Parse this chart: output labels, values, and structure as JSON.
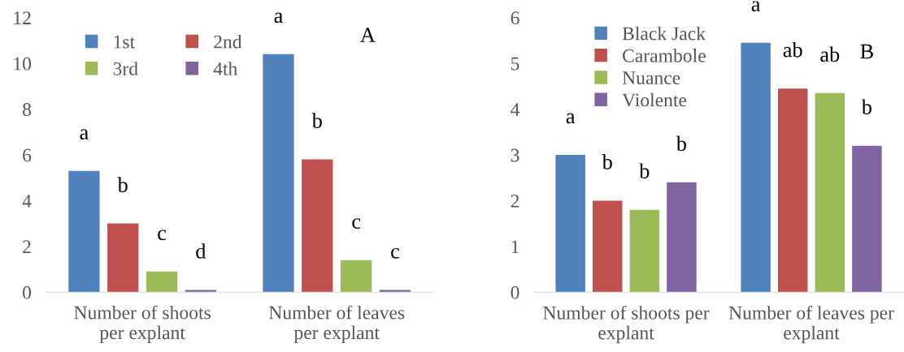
{
  "chart_data": [
    {
      "type": "bar",
      "categories": [
        "Number of shoots\nper explant",
        "Number of leaves\nper explant"
      ],
      "ylim": [
        0,
        12
      ],
      "yticks": [
        0,
        2,
        4,
        6,
        8,
        10,
        12
      ],
      "grid": false,
      "legend": "top left",
      "series": [
        {
          "name": "1st",
          "color": "#4f81bd",
          "values": [
            5.3,
            10.4
          ]
        },
        {
          "name": "2nd",
          "color": "#c0504d",
          "values": [
            3.0,
            5.8
          ]
        },
        {
          "name": "3rd",
          "color": "#9bbb59",
          "values": [
            0.9,
            1.4
          ]
        },
        {
          "name": "4th",
          "color": "#8064a2",
          "values": [
            0.1,
            0.1
          ]
        }
      ],
      "annotations": [
        "A",
        "a",
        "b",
        "c",
        "d",
        "a",
        "b",
        "c",
        "c"
      ]
    },
    {
      "type": "bar",
      "categories": [
        "Number of shoots per\nexplant",
        "Number of leaves per\nexplant"
      ],
      "ylim": [
        0,
        6
      ],
      "yticks": [
        0,
        1,
        2,
        3,
        4,
        5,
        6
      ],
      "grid": false,
      "legend": "top left",
      "series": [
        {
          "name": "Black Jack",
          "color": "#4f81bd",
          "values": [
            3.0,
            5.45
          ]
        },
        {
          "name": "Carambole",
          "color": "#c0504d",
          "values": [
            2.0,
            4.45
          ]
        },
        {
          "name": "Nuance",
          "color": "#9bbb59",
          "values": [
            1.8,
            4.35
          ]
        },
        {
          "name": "Violente",
          "color": "#8064a2",
          "values": [
            2.4,
            3.2
          ]
        }
      ],
      "annotations": [
        "B",
        "a",
        "b",
        "b",
        "b",
        "a",
        "ab",
        "ab",
        "b"
      ]
    }
  ]
}
